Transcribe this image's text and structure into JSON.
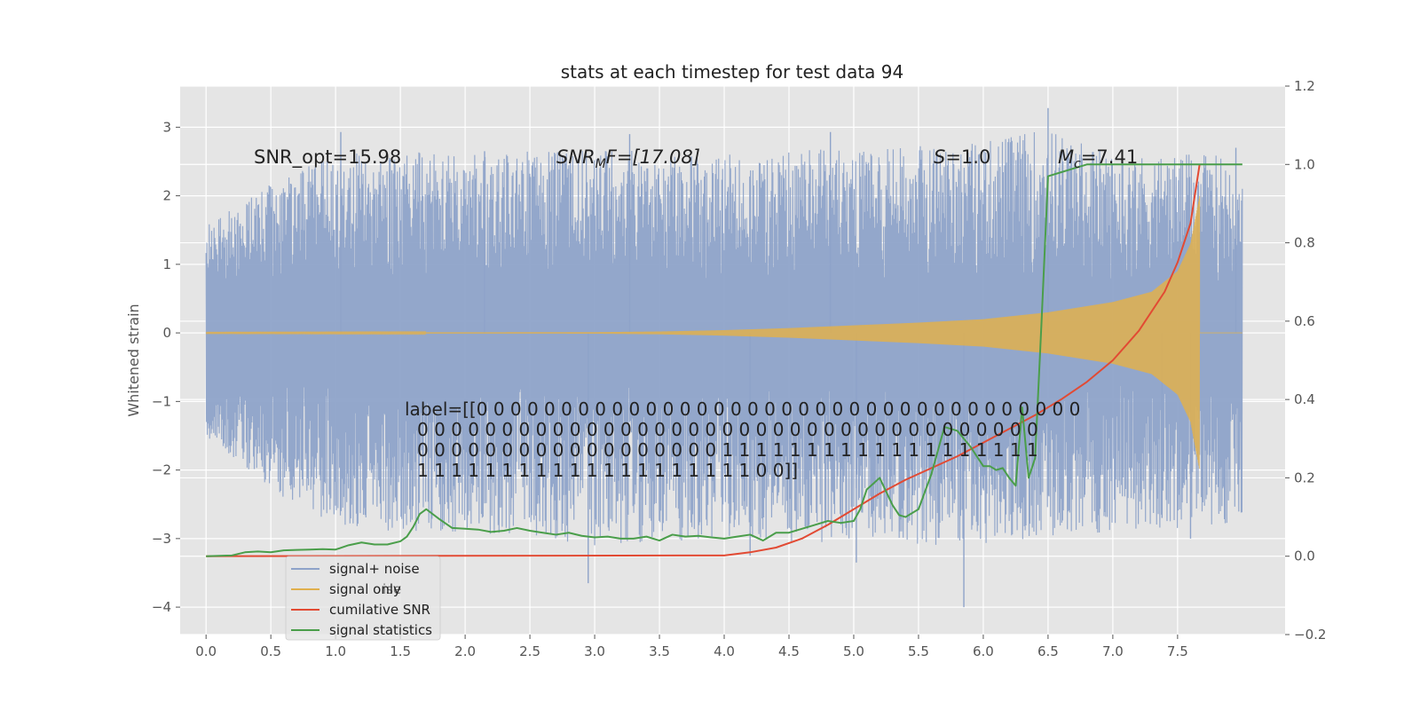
{
  "chart_data": {
    "type": "line",
    "title": "stats at each timestep for test data 94",
    "xlabel": "",
    "ylabel": "Whitened strain",
    "xlim": [
      -0.2,
      8.33
    ],
    "ylim_left": [
      -4.4,
      3.6
    ],
    "ylim_right": [
      -0.2,
      1.2
    ],
    "x_ticks": [
      0.0,
      0.5,
      1.0,
      1.5,
      2.0,
      2.5,
      3.0,
      3.5,
      4.0,
      4.5,
      5.0,
      5.5,
      6.0,
      6.5,
      7.0,
      7.5
    ],
    "x_tick_labels": [
      "0.0",
      "0.5",
      "1.0",
      "1.5",
      "2.0",
      "2.5",
      "3.0",
      "3.5",
      "4.0",
      "4.5",
      "5.0",
      "5.5",
      "6.0",
      "6.5",
      "7.0",
      "7.5"
    ],
    "y_left_ticks": [
      3,
      2,
      1,
      0,
      -1,
      -2,
      -3,
      -4
    ],
    "y_left_tick_labels": [
      "3",
      "2",
      "1",
      "0",
      "−1",
      "−2",
      "−3",
      "−4"
    ],
    "y_right_ticks": [
      1.2,
      1.0,
      0.8,
      0.6,
      0.4,
      0.2,
      0.0,
      -0.2
    ],
    "y_right_tick_labels": [
      "1.2",
      "1.0",
      "0.8",
      "0.6",
      "0.4",
      "0.2",
      "0.0",
      "−0.2"
    ],
    "grid": true,
    "legend_position": "bottom-left",
    "annotations": {
      "snr_opt": "SNR_opt=15.98",
      "snr_mf_main": "SNR",
      "snr_mf_sub": "M",
      "snr_mf_rest": "F=[17.08]",
      "s_sym": "S",
      "s_val": "=1.0",
      "mc_sym": "M",
      "mc_sub": "c",
      "mc_val": "=7.41"
    },
    "label_lines": [
      "label=[[0 0 0 0 0 0 0 0 0 0 0 0 0 0 0 0 0 0 0 0 0 0 0 0 0 0 0 0 0 0 0 0 0 0 0 0",
      "0 0 0 0 0 0 0 0 0 0 0 0 0 0 0 0 0 0 0 0 0 0 0 0 0 0 0 0 0 0 0 0 0 0 0 0 0",
      "0 0 0 0 0 0 0 0 0 0 0 0 0 0 0 0 0 0 1 1 1 1 1 1 1 1 1 1 1 1 1 1 1 1 1 1 1",
      "1 1 1 1 1 1 1 1 1 1 1 1 1 1 1 1 1 1 1 1 0 0]]"
    ],
    "series": [
      {
        "name": "signal+ noise",
        "axis": "left",
        "color": "#8ea3c9",
        "x_range": [
          0.0,
          8.0
        ],
        "envelope_top": [
          [
            0.0,
            1.6
          ],
          [
            0.5,
            2.2
          ],
          [
            1.0,
            2.6
          ],
          [
            1.5,
            2.7
          ],
          [
            2.0,
            2.6
          ],
          [
            3.0,
            2.7
          ],
          [
            4.0,
            2.6
          ],
          [
            5.0,
            2.7
          ],
          [
            6.0,
            2.8
          ],
          [
            6.5,
            3.0
          ],
          [
            7.0,
            2.6
          ],
          [
            8.0,
            2.6
          ]
        ],
        "envelope_bottom": [
          [
            0.0,
            -1.5
          ],
          [
            0.5,
            -2.3
          ],
          [
            1.0,
            -2.8
          ],
          [
            1.5,
            -3.0
          ],
          [
            2.0,
            -2.9
          ],
          [
            3.0,
            -3.1
          ],
          [
            4.0,
            -3.0
          ],
          [
            5.0,
            -3.1
          ],
          [
            6.0,
            -3.1
          ],
          [
            7.0,
            -2.9
          ],
          [
            8.0,
            -2.8
          ]
        ],
        "peaks": [
          [
            1.04,
            2.93
          ],
          [
            2.15,
            2.65
          ],
          [
            2.95,
            -3.65
          ],
          [
            3.27,
            2.9
          ],
          [
            4.2,
            -3.25
          ],
          [
            4.82,
            2.93
          ],
          [
            5.02,
            -3.35
          ],
          [
            5.85,
            -4.0
          ],
          [
            6.5,
            3.28
          ],
          [
            7.38,
            -2.7
          ],
          [
            7.6,
            -3.0
          ],
          [
            7.95,
            2.7
          ]
        ]
      },
      {
        "name": "signal only",
        "axis": "left",
        "color": "#e0b04e",
        "x": [
          0.0,
          3.0,
          3.5,
          4.0,
          4.5,
          5.0,
          5.5,
          6.0,
          6.5,
          7.0,
          7.3,
          7.5,
          7.6,
          7.67
        ],
        "amplitude": [
          0.005,
          0.01,
          0.02,
          0.04,
          0.07,
          0.11,
          0.15,
          0.2,
          0.3,
          0.45,
          0.6,
          0.9,
          1.3,
          2.0
        ]
      },
      {
        "name": "cumilative SNR",
        "axis": "right",
        "color": "#e24a33",
        "x": [
          0.0,
          4.0,
          4.2,
          4.4,
          4.6,
          4.8,
          5.0,
          5.2,
          5.4,
          5.6,
          5.8,
          6.0,
          6.2,
          6.4,
          6.6,
          6.8,
          7.0,
          7.2,
          7.4,
          7.5,
          7.6,
          7.67
        ],
        "y": [
          0.0,
          0.002,
          0.01,
          0.022,
          0.045,
          0.08,
          0.12,
          0.16,
          0.195,
          0.225,
          0.255,
          0.29,
          0.325,
          0.36,
          0.4,
          0.445,
          0.5,
          0.575,
          0.675,
          0.75,
          0.85,
          1.0
        ]
      },
      {
        "name": "signal statistics",
        "axis": "right",
        "color": "#4a9e4a",
        "x": [
          0.0,
          0.2,
          0.3,
          0.4,
          0.5,
          0.6,
          0.7,
          0.8,
          0.9,
          1.0,
          1.1,
          1.2,
          1.3,
          1.4,
          1.5,
          1.55,
          1.6,
          1.65,
          1.7,
          1.8,
          1.9,
          2.0,
          2.1,
          2.2,
          2.3,
          2.4,
          2.5,
          2.6,
          2.7,
          2.8,
          2.9,
          3.0,
          3.1,
          3.2,
          3.3,
          3.4,
          3.5,
          3.6,
          3.7,
          3.8,
          3.9,
          4.0,
          4.1,
          4.2,
          4.3,
          4.4,
          4.5,
          4.6,
          4.7,
          4.8,
          4.9,
          5.0,
          5.05,
          5.1,
          5.2,
          5.3,
          5.35,
          5.4,
          5.5,
          5.6,
          5.7,
          5.8,
          5.9,
          6.0,
          6.05,
          6.1,
          6.15,
          6.2,
          6.25,
          6.3,
          6.35,
          6.4,
          6.45,
          6.5,
          6.6,
          6.7,
          6.8,
          7.0,
          7.2,
          7.4,
          7.6,
          7.67,
          8.0
        ],
        "y": [
          0.0,
          0.002,
          0.01,
          0.012,
          0.01,
          0.015,
          0.016,
          0.017,
          0.018,
          0.017,
          0.028,
          0.035,
          0.03,
          0.03,
          0.038,
          0.05,
          0.075,
          0.108,
          0.12,
          0.095,
          0.072,
          0.07,
          0.068,
          0.062,
          0.065,
          0.072,
          0.065,
          0.06,
          0.055,
          0.06,
          0.052,
          0.048,
          0.05,
          0.045,
          0.045,
          0.05,
          0.04,
          0.055,
          0.05,
          0.052,
          0.048,
          0.045,
          0.05,
          0.055,
          0.04,
          0.06,
          0.06,
          0.07,
          0.08,
          0.09,
          0.085,
          0.09,
          0.12,
          0.17,
          0.2,
          0.13,
          0.105,
          0.1,
          0.12,
          0.21,
          0.33,
          0.32,
          0.28,
          0.23,
          0.23,
          0.22,
          0.225,
          0.2,
          0.18,
          0.38,
          0.2,
          0.25,
          0.6,
          0.97,
          0.98,
          0.99,
          1.0,
          1.0,
          1.0,
          1.0,
          1.0,
          1.0,
          1.0
        ]
      }
    ]
  },
  "legend": {
    "items": [
      "signal+ noise",
      "signal only",
      "cumilative SNR",
      "signal statistics"
    ],
    "ghost_text": "ise"
  }
}
